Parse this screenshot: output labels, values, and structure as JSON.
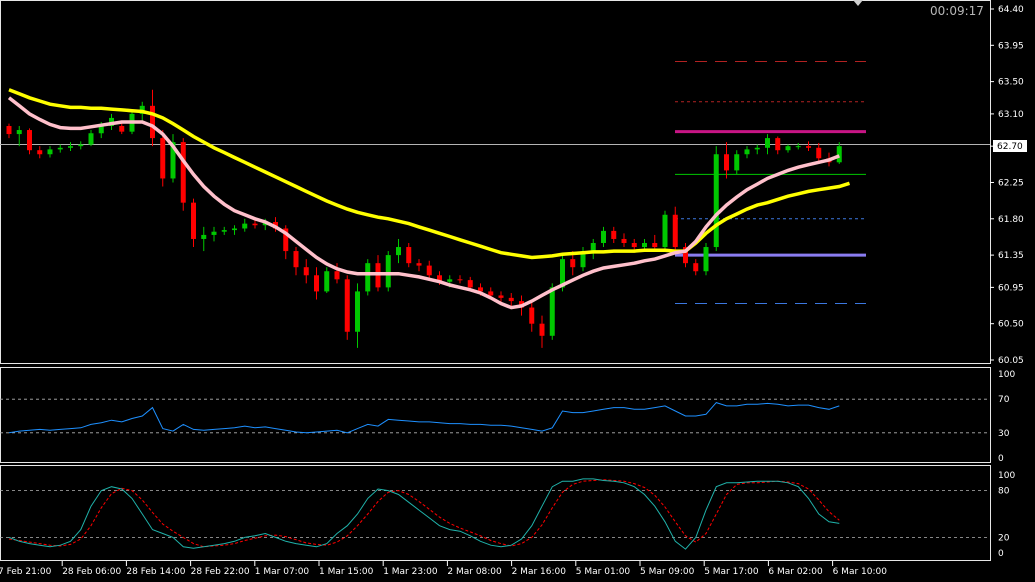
{
  "timer": "00:09:17",
  "current_price_label": "62.70",
  "colors": {
    "background": "#000000",
    "bull_candle": "#00c800",
    "bear_candle": "#ff0000",
    "ma_slow": "#ffff00",
    "ma_fast": "#ffc0cb",
    "rsi": "#1e90ff",
    "stoch_main": "#20b2aa",
    "stoch_signal": "#ff0000",
    "level_magenta": "#c71585",
    "level_purple": "#8a7cf0",
    "level_green": "#00c800",
    "level_red": "#b22222",
    "level_blue": "#3c78e0",
    "grid_line": "#b4b4b4"
  },
  "price_axis": {
    "ticks": [
      "64.40",
      "63.95",
      "63.50",
      "63.10",
      "62.70",
      "62.25",
      "61.80",
      "61.35",
      "60.95",
      "60.50",
      "60.05"
    ],
    "range": [
      60.0,
      64.5
    ]
  },
  "rsi_axis": {
    "ticks": [
      "100",
      "70",
      "30",
      "0"
    ]
  },
  "stoch_axis": {
    "ticks": [
      "100",
      "80",
      "20",
      "0"
    ]
  },
  "time_labels": [
    "7 Feb 21:00",
    "28 Feb 06:00",
    "28 Feb 14:00",
    "28 Feb 22:00",
    "1 Mar 07:00",
    "1 Mar 15:00",
    "1 Mar 23:00",
    "2 Mar 08:00",
    "2 Mar 16:00",
    "5 Mar 01:00",
    "5 Mar 09:00",
    "5 Mar 17:00",
    "6 Mar 02:00",
    "6 Mar 10:00"
  ],
  "chart_data": {
    "type": "candlestick",
    "title": "",
    "price_ylim": [
      60.0,
      64.5
    ],
    "candles_ohlc": [
      [
        62.95,
        62.98,
        62.8,
        62.85
      ],
      [
        62.85,
        62.95,
        62.7,
        62.9
      ],
      [
        62.9,
        62.92,
        62.6,
        62.65
      ],
      [
        62.65,
        62.7,
        62.55,
        62.6
      ],
      [
        62.6,
        62.7,
        62.56,
        62.66
      ],
      [
        62.66,
        62.72,
        62.62,
        62.68
      ],
      [
        62.68,
        62.75,
        62.64,
        62.7
      ],
      [
        62.7,
        62.76,
        62.66,
        62.72
      ],
      [
        62.72,
        62.9,
        62.7,
        62.86
      ],
      [
        62.86,
        63.0,
        62.8,
        62.95
      ],
      [
        62.95,
        63.1,
        62.9,
        63.05
      ],
      [
        62.95,
        62.98,
        62.85,
        62.88
      ],
      [
        62.88,
        63.15,
        62.85,
        63.1
      ],
      [
        63.1,
        63.25,
        63.0,
        63.2
      ],
      [
        63.2,
        63.4,
        62.7,
        62.8
      ],
      [
        62.8,
        62.9,
        62.2,
        62.3
      ],
      [
        62.3,
        62.85,
        62.25,
        62.75
      ],
      [
        62.75,
        62.8,
        61.9,
        62.0
      ],
      [
        62.0,
        62.05,
        61.45,
        61.55
      ],
      [
        61.55,
        61.7,
        61.4,
        61.6
      ],
      [
        61.6,
        61.7,
        61.52,
        61.64
      ],
      [
        61.64,
        61.7,
        61.6,
        61.66
      ],
      [
        61.66,
        61.72,
        61.6,
        61.68
      ],
      [
        61.68,
        61.8,
        61.64,
        61.74
      ],
      [
        61.74,
        61.78,
        61.68,
        61.72
      ],
      [
        61.72,
        61.8,
        61.66,
        61.76
      ],
      [
        61.76,
        61.82,
        61.64,
        61.68
      ],
      [
        61.68,
        61.72,
        61.3,
        61.4
      ],
      [
        61.4,
        61.45,
        61.1,
        61.2
      ],
      [
        61.2,
        61.3,
        61.0,
        61.1
      ],
      [
        61.1,
        61.2,
        60.8,
        60.9
      ],
      [
        60.9,
        61.2,
        60.88,
        61.15
      ],
      [
        61.15,
        61.25,
        61.0,
        61.05
      ],
      [
        61.05,
        61.1,
        60.3,
        60.4
      ],
      [
        60.4,
        61.0,
        60.2,
        60.9
      ],
      [
        60.9,
        61.3,
        60.85,
        61.25
      ],
      [
        61.25,
        61.35,
        60.9,
        60.95
      ],
      [
        60.95,
        61.4,
        60.9,
        61.35
      ],
      [
        61.35,
        61.55,
        61.25,
        61.45
      ],
      [
        61.45,
        61.5,
        61.2,
        61.25
      ],
      [
        61.25,
        61.3,
        61.15,
        61.22
      ],
      [
        61.22,
        61.28,
        61.05,
        61.1
      ],
      [
        61.1,
        61.15,
        60.98,
        61.02
      ],
      [
        61.02,
        61.1,
        60.95,
        61.05
      ],
      [
        61.05,
        61.1,
        61.0,
        61.04
      ],
      [
        61.04,
        61.08,
        60.9,
        60.95
      ],
      [
        60.95,
        61.0,
        60.85,
        60.9
      ],
      [
        60.9,
        60.95,
        60.8,
        60.85
      ],
      [
        60.85,
        60.9,
        60.75,
        60.82
      ],
      [
        60.82,
        60.88,
        60.7,
        60.78
      ],
      [
        60.78,
        60.85,
        60.6,
        60.7
      ],
      [
        60.7,
        60.8,
        60.4,
        60.5
      ],
      [
        60.5,
        60.6,
        60.2,
        60.35
      ],
      [
        60.35,
        61.0,
        60.3,
        60.95
      ],
      [
        60.95,
        61.35,
        60.9,
        61.3
      ],
      [
        61.3,
        61.4,
        61.1,
        61.2
      ],
      [
        61.2,
        61.45,
        61.15,
        61.4
      ],
      [
        61.4,
        61.55,
        61.3,
        61.5
      ],
      [
        61.5,
        61.7,
        61.45,
        61.65
      ],
      [
        61.65,
        61.7,
        61.5,
        61.55
      ],
      [
        61.55,
        61.62,
        61.45,
        61.5
      ],
      [
        61.5,
        61.55,
        61.4,
        61.45
      ],
      [
        61.45,
        61.55,
        61.4,
        61.5
      ],
      [
        61.5,
        61.6,
        61.4,
        61.45
      ],
      [
        61.45,
        61.9,
        61.4,
        61.85
      ],
      [
        61.85,
        61.95,
        61.4,
        61.45
      ],
      [
        61.45,
        61.5,
        61.2,
        61.25
      ],
      [
        61.25,
        61.3,
        61.1,
        61.15
      ],
      [
        61.15,
        61.5,
        61.1,
        61.45
      ],
      [
        61.45,
        62.7,
        61.4,
        62.6
      ],
      [
        62.6,
        62.75,
        62.3,
        62.4
      ],
      [
        62.4,
        62.65,
        62.35,
        62.6
      ],
      [
        62.6,
        62.7,
        62.55,
        62.66
      ],
      [
        62.66,
        62.72,
        62.6,
        62.68
      ],
      [
        62.68,
        62.85,
        62.6,
        62.8
      ],
      [
        62.8,
        62.82,
        62.6,
        62.65
      ],
      [
        62.65,
        62.72,
        62.62,
        62.7
      ],
      [
        62.7,
        62.74,
        62.66,
        62.7
      ],
      [
        62.7,
        62.76,
        62.64,
        62.68
      ],
      [
        62.68,
        62.74,
        62.5,
        62.55
      ],
      [
        62.55,
        62.62,
        62.45,
        62.5
      ],
      [
        62.5,
        62.75,
        62.48,
        62.7
      ]
    ],
    "ma_slow": [
      63.4,
      63.35,
      63.3,
      63.26,
      63.22,
      63.2,
      63.18,
      63.18,
      63.17,
      63.17,
      63.16,
      63.15,
      63.14,
      63.13,
      63.1,
      63.05,
      62.98,
      62.9,
      62.82,
      62.75,
      62.68,
      62.62,
      62.56,
      62.5,
      62.44,
      62.38,
      62.32,
      62.26,
      62.2,
      62.14,
      62.08,
      62.02,
      61.97,
      61.92,
      61.88,
      61.85,
      61.82,
      61.8,
      61.77,
      61.74,
      61.7,
      61.66,
      61.62,
      61.58,
      61.54,
      61.5,
      61.46,
      61.42,
      61.38,
      61.36,
      61.34,
      61.32,
      61.33,
      61.34,
      61.36,
      61.37,
      61.38,
      61.39,
      61.39,
      61.4,
      61.4,
      61.4,
      61.41,
      61.41,
      61.41,
      61.4,
      61.4,
      61.5,
      61.62,
      61.72,
      61.8,
      61.86,
      61.92,
      61.97,
      62.0,
      62.04,
      62.08,
      62.11,
      62.14,
      62.16,
      62.18,
      62.2,
      62.24
    ],
    "ma_fast": [
      63.3,
      63.2,
      63.1,
      63.03,
      62.97,
      62.93,
      62.92,
      62.92,
      62.94,
      62.96,
      62.98,
      63.0,
      63.0,
      63.0,
      62.95,
      62.85,
      62.7,
      62.52,
      62.35,
      62.2,
      62.08,
      61.98,
      61.9,
      61.85,
      61.8,
      61.76,
      61.7,
      61.62,
      61.52,
      61.42,
      61.32,
      61.24,
      61.18,
      61.14,
      61.12,
      61.12,
      61.12,
      61.12,
      61.12,
      61.1,
      61.08,
      61.05,
      61.02,
      60.98,
      60.95,
      60.92,
      60.88,
      60.82,
      60.75,
      60.7,
      60.72,
      60.78,
      60.85,
      60.92,
      60.98,
      61.04,
      61.1,
      61.15,
      61.19,
      61.21,
      61.23,
      61.25,
      61.28,
      61.3,
      61.34,
      61.38,
      61.4,
      61.52,
      61.7,
      61.85,
      61.97,
      62.07,
      62.16,
      62.23,
      62.3,
      62.35,
      62.4,
      62.44,
      62.47,
      62.5,
      62.53,
      62.58
    ],
    "horizontal_levels": [
      {
        "price": 63.75,
        "style": "dashed",
        "color": "red"
      },
      {
        "price": 63.25,
        "style": "dotted",
        "color": "red"
      },
      {
        "price": 62.88,
        "style": "solid",
        "color": "magenta"
      },
      {
        "price": 62.72,
        "style": "solid",
        "color": "grey"
      },
      {
        "price": 62.35,
        "style": "solid",
        "color": "green"
      },
      {
        "price": 61.8,
        "style": "dotted",
        "color": "blue"
      },
      {
        "price": 61.35,
        "style": "solid",
        "color": "purple"
      },
      {
        "price": 60.75,
        "style": "dashed",
        "color": "blue"
      }
    ],
    "rsi": [
      30,
      32,
      33,
      34,
      33,
      34,
      35,
      36,
      40,
      42,
      45,
      43,
      47,
      50,
      60,
      35,
      32,
      40,
      34,
      33,
      34,
      35,
      36,
      38,
      36,
      37,
      35,
      33,
      31,
      30,
      31,
      32,
      33,
      30,
      35,
      40,
      38,
      46,
      45,
      44,
      43,
      43,
      42,
      41,
      41,
      40,
      40,
      39,
      39,
      38,
      36,
      34,
      32,
      36,
      56,
      54,
      54,
      56,
      58,
      60,
      60,
      58,
      58,
      60,
      62,
      56,
      50,
      50,
      52,
      66,
      62,
      62,
      64,
      64,
      65,
      64,
      62,
      63,
      63,
      60,
      58,
      62
    ],
    "rsi_levels": [
      70,
      30
    ],
    "stoch_main": [
      20,
      15,
      12,
      10,
      8,
      10,
      15,
      30,
      60,
      80,
      85,
      82,
      70,
      50,
      30,
      25,
      20,
      8,
      6,
      8,
      10,
      12,
      15,
      20,
      22,
      25,
      20,
      15,
      12,
      10,
      8,
      12,
      25,
      35,
      50,
      70,
      82,
      80,
      75,
      65,
      55,
      45,
      35,
      30,
      28,
      22,
      15,
      10,
      8,
      10,
      18,
      35,
      60,
      85,
      92,
      92,
      95,
      95,
      93,
      92,
      90,
      85,
      75,
      60,
      40,
      15,
      5,
      20,
      55,
      85,
      90,
      90,
      91,
      92,
      92,
      92,
      90,
      85,
      70,
      50,
      40,
      38
    ],
    "stoch_signal": [
      18,
      16,
      14,
      12,
      10,
      9,
      11,
      18,
      35,
      58,
      76,
      83,
      80,
      68,
      52,
      37,
      28,
      20,
      12,
      8,
      9,
      10,
      12,
      16,
      19,
      22,
      23,
      21,
      17,
      13,
      11,
      10,
      14,
      22,
      35,
      50,
      66,
      78,
      80,
      75,
      66,
      56,
      46,
      38,
      32,
      27,
      22,
      16,
      12,
      9,
      12,
      20,
      36,
      58,
      78,
      88,
      92,
      93,
      94,
      93,
      92,
      89,
      84,
      74,
      59,
      40,
      22,
      14,
      25,
      50,
      75,
      88,
      90,
      90,
      91,
      92,
      91,
      89,
      82,
      68,
      53,
      42
    ],
    "stoch_levels": [
      80,
      20
    ]
  }
}
